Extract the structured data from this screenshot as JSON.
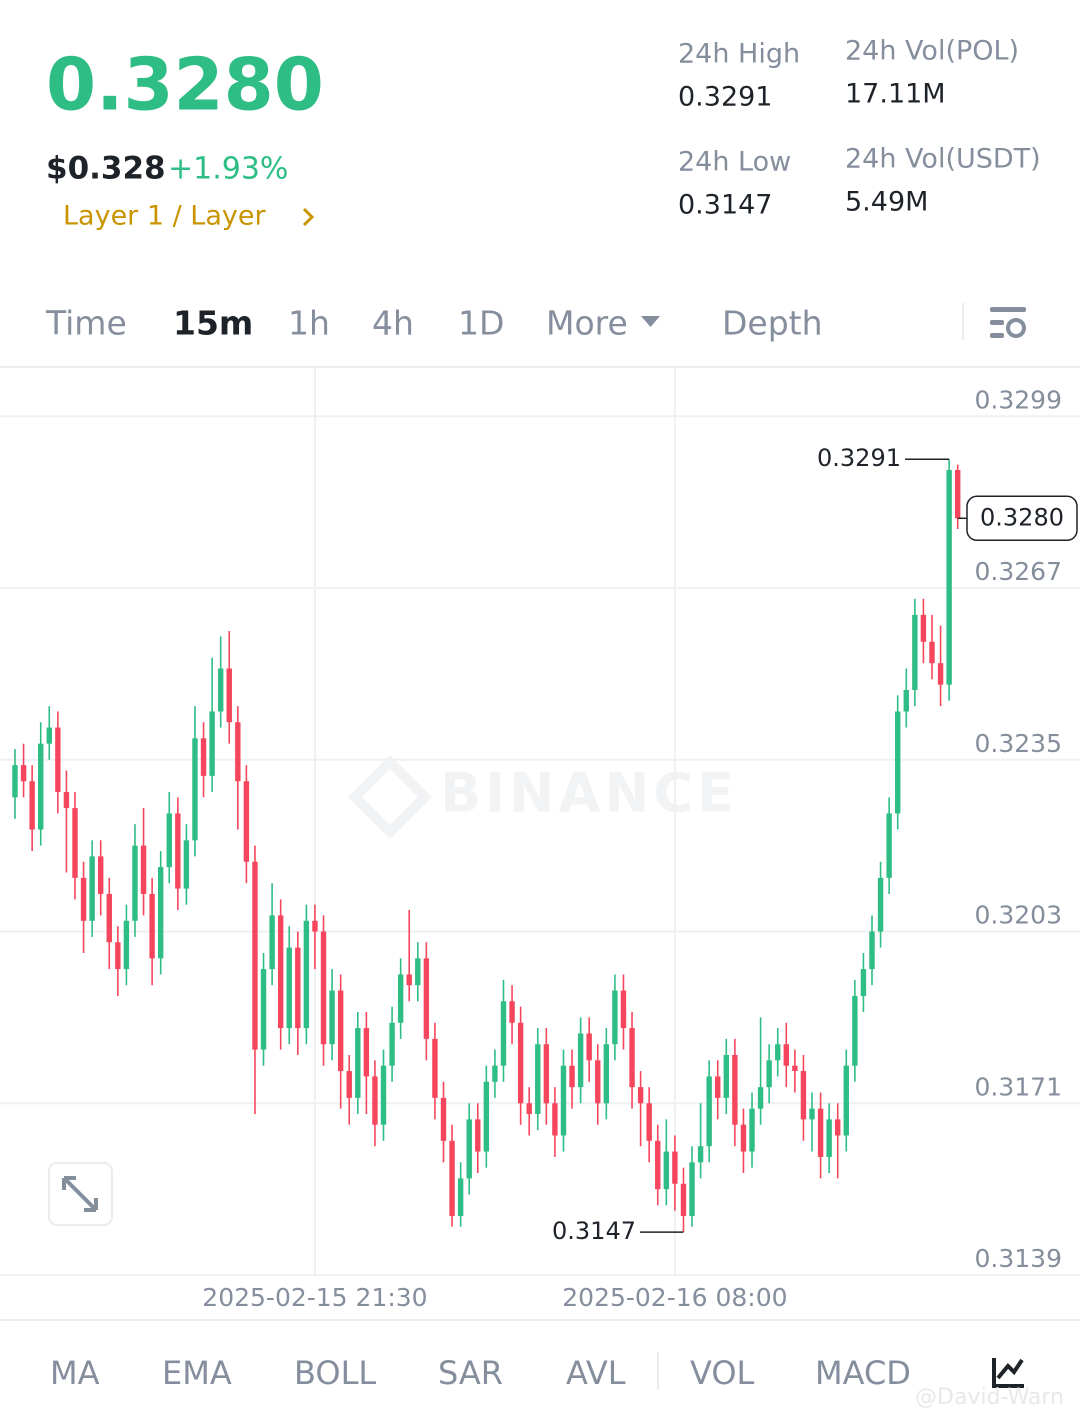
{
  "header": {
    "price": "0.3280",
    "price_usd": "$0.328",
    "change": "+1.93%",
    "category": "Layer 1 / Layer",
    "stats": [
      {
        "label": "24h High",
        "value": "0.3291"
      },
      {
        "label": "24h Vol(POL)",
        "value": "17.11M"
      },
      {
        "label": "24h Low",
        "value": "0.3147"
      },
      {
        "label": "24h Vol(USDT)",
        "value": "5.49M"
      }
    ]
  },
  "tabs": [
    "Time",
    "15m",
    "1h",
    "4h",
    "1D",
    "More",
    "Depth"
  ],
  "active_tab": 1,
  "indicators": [
    "MA",
    "EMA",
    "BOLL",
    "SAR",
    "AVL",
    "VOL",
    "MACD"
  ],
  "watermarks": [
    "BINANCE",
    "@David-Warn"
  ],
  "chart_data": {
    "type": "candlestick",
    "up_color": "#2ebd85",
    "down_color": "#f6465d",
    "grid": true,
    "ylim": [
      0.3139,
      0.3308
    ],
    "yticks": [
      0.3139,
      0.3171,
      0.3203,
      0.3235,
      0.3267,
      0.3299
    ],
    "annotations": [
      {
        "value": 0.3291,
        "label": "0.3291"
      },
      {
        "value": 0.3147,
        "label": "0.3147"
      },
      {
        "value": 0.328,
        "label": "0.3280"
      }
    ],
    "categories": [
      null,
      null,
      null,
      null,
      null,
      null,
      null,
      null,
      null,
      null,
      null,
      null,
      null,
      null,
      null,
      null,
      null,
      null,
      null,
      null,
      null,
      null,
      null,
      null,
      null,
      null,
      null,
      null,
      null,
      null,
      null,
      null,
      null,
      null,
      null,
      "2025-02-15 21:30",
      null,
      null,
      null,
      null,
      null,
      null,
      null,
      null,
      null,
      null,
      null,
      null,
      null,
      null,
      null,
      null,
      null,
      null,
      null,
      null,
      null,
      null,
      null,
      null,
      null,
      null,
      null,
      null,
      null,
      null,
      null,
      null,
      null,
      null,
      null,
      null,
      null,
      null,
      null,
      null,
      null,
      "2025-02-16 08:00",
      null,
      null,
      null,
      null,
      null,
      null,
      null,
      null,
      null,
      null,
      null,
      null,
      null,
      null,
      null,
      null,
      null,
      null,
      null,
      null,
      null,
      null,
      null,
      null,
      null,
      null,
      null,
      null,
      null,
      null,
      null,
      null,
      null
    ],
    "open": [
      0.3228,
      0.3234,
      0.3231,
      0.3222,
      0.3238,
      0.3241,
      0.3229,
      0.3226,
      0.3213,
      0.3205,
      0.3217,
      0.321,
      0.3201,
      0.3196,
      0.3205,
      0.3219,
      0.321,
      0.3198,
      0.3215,
      0.3225,
      0.3211,
      0.322,
      0.3239,
      0.3232,
      0.3244,
      0.3252,
      0.3242,
      0.3231,
      0.3216,
      0.3181,
      0.3196,
      0.3206,
      0.3185,
      0.32,
      0.3185,
      0.3205,
      0.3203,
      0.3182,
      0.3192,
      0.3177,
      0.3172,
      0.3185,
      0.3176,
      0.3167,
      0.3178,
      0.3186,
      0.3195,
      0.3193,
      0.3198,
      0.3183,
      0.3172,
      0.3164,
      0.315,
      0.3157,
      0.3168,
      0.3162,
      0.3175,
      0.3178,
      0.319,
      0.3186,
      0.3171,
      0.3169,
      0.3182,
      0.3171,
      0.3165,
      0.3178,
      0.3174,
      0.3184,
      0.3179,
      0.3171,
      0.3182,
      0.3192,
      0.3185,
      0.3174,
      0.3171,
      0.3164,
      0.3155,
      0.3162,
      0.3156,
      0.315,
      0.316,
      0.3163,
      0.3176,
      0.3172,
      0.318,
      0.3167,
      0.3162,
      0.317,
      0.3174,
      0.3179,
      0.3182,
      0.3178,
      0.3177,
      0.3168,
      0.317,
      0.3161,
      0.3168,
      0.3165,
      0.3178,
      0.3191,
      0.3196,
      0.3203,
      0.3213,
      0.3225,
      0.3244,
      0.3248,
      0.3262,
      0.3257,
      0.3253,
      0.3249,
      0.3289
    ],
    "high": [
      0.3237,
      0.3238,
      0.3234,
      0.3242,
      0.3245,
      0.3244,
      0.3233,
      0.3229,
      0.3216,
      0.322,
      0.322,
      0.3213,
      0.3204,
      0.3208,
      0.3223,
      0.3226,
      0.3213,
      0.3218,
      0.3229,
      0.3228,
      0.3223,
      0.3245,
      0.3242,
      0.3254,
      0.3258,
      0.3259,
      0.3245,
      0.3234,
      0.3219,
      0.3199,
      0.3212,
      0.3209,
      0.3204,
      0.3203,
      0.3208,
      0.3208,
      0.3206,
      0.3196,
      0.3195,
      0.318,
      0.3188,
      0.3188,
      0.3179,
      0.3181,
      0.3189,
      0.3198,
      0.3207,
      0.3201,
      0.3201,
      0.3186,
      0.3175,
      0.3167,
      0.316,
      0.3171,
      0.3171,
      0.3178,
      0.3181,
      0.3194,
      0.3193,
      0.3189,
      0.3174,
      0.3185,
      0.3185,
      0.3174,
      0.3181,
      0.3181,
      0.3187,
      0.3187,
      0.3182,
      0.3185,
      0.3195,
      0.3195,
      0.3188,
      0.3177,
      0.3174,
      0.3167,
      0.3168,
      0.3165,
      0.3159,
      0.3163,
      0.3171,
      0.3179,
      0.3179,
      0.3183,
      0.3183,
      0.317,
      0.3173,
      0.3187,
      0.3182,
      0.3185,
      0.3186,
      0.3181,
      0.318,
      0.3173,
      0.3173,
      0.3171,
      0.3171,
      0.3181,
      0.3194,
      0.3199,
      0.3206,
      0.3216,
      0.3228,
      0.3247,
      0.3252,
      0.3265,
      0.3265,
      0.3262,
      0.326,
      0.3291,
      0.329
    ],
    "low": [
      0.3224,
      0.3228,
      0.3218,
      0.3219,
      0.3235,
      0.3225,
      0.3214,
      0.3209,
      0.3199,
      0.3202,
      0.3206,
      0.3196,
      0.3191,
      0.3193,
      0.3202,
      0.3206,
      0.3193,
      0.3195,
      0.3212,
      0.3207,
      0.3208,
      0.3217,
      0.3228,
      0.3229,
      0.3241,
      0.3238,
      0.3222,
      0.3212,
      0.3169,
      0.3178,
      0.3193,
      0.3181,
      0.3182,
      0.318,
      0.3182,
      0.3196,
      0.3178,
      0.3179,
      0.317,
      0.3167,
      0.3169,
      0.3169,
      0.3163,
      0.3164,
      0.3175,
      0.3183,
      0.319,
      0.319,
      0.3179,
      0.3168,
      0.316,
      0.3148,
      0.3148,
      0.3154,
      0.3158,
      0.3159,
      0.3172,
      0.3175,
      0.3182,
      0.3167,
      0.3165,
      0.3166,
      0.3167,
      0.3161,
      0.3162,
      0.317,
      0.3171,
      0.3175,
      0.3167,
      0.3168,
      0.3179,
      0.3181,
      0.317,
      0.3163,
      0.316,
      0.3152,
      0.3152,
      0.3151,
      0.3147,
      0.3148,
      0.3157,
      0.316,
      0.3168,
      0.3169,
      0.3163,
      0.3158,
      0.3159,
      0.3167,
      0.3171,
      0.3176,
      0.3174,
      0.3173,
      0.3164,
      0.3162,
      0.3157,
      0.3158,
      0.3157,
      0.3162,
      0.3175,
      0.3188,
      0.3193,
      0.32,
      0.321,
      0.3222,
      0.3241,
      0.3245,
      0.3253,
      0.325,
      0.3245,
      0.3246,
      0.3278
    ],
    "close": [
      0.3234,
      0.3231,
      0.3222,
      0.3238,
      0.3241,
      0.3229,
      0.3226,
      0.3213,
      0.3205,
      0.3217,
      0.321,
      0.3201,
      0.3196,
      0.3205,
      0.3219,
      0.321,
      0.3198,
      0.3215,
      0.3225,
      0.3211,
      0.322,
      0.3239,
      0.3232,
      0.3244,
      0.3252,
      0.3242,
      0.3231,
      0.3216,
      0.3181,
      0.3196,
      0.3206,
      0.3185,
      0.32,
      0.3185,
      0.3205,
      0.3203,
      0.3182,
      0.3192,
      0.3177,
      0.3172,
      0.3185,
      0.3176,
      0.3167,
      0.3178,
      0.3186,
      0.3195,
      0.3193,
      0.3198,
      0.3183,
      0.3172,
      0.3164,
      0.315,
      0.3157,
      0.3168,
      0.3162,
      0.3175,
      0.3178,
      0.319,
      0.3186,
      0.3171,
      0.3169,
      0.3182,
      0.3171,
      0.3165,
      0.3178,
      0.3174,
      0.3184,
      0.3179,
      0.3171,
      0.3182,
      0.3192,
      0.3185,
      0.3174,
      0.3171,
      0.3164,
      0.3155,
      0.3162,
      0.3156,
      0.315,
      0.316,
      0.3163,
      0.3176,
      0.3172,
      0.318,
      0.3167,
      0.3162,
      0.317,
      0.3174,
      0.3179,
      0.3182,
      0.3178,
      0.3177,
      0.3168,
      0.317,
      0.3161,
      0.3168,
      0.3165,
      0.3178,
      0.3191,
      0.3196,
      0.3203,
      0.3213,
      0.3225,
      0.3244,
      0.3248,
      0.3262,
      0.3257,
      0.3253,
      0.3249,
      0.3289,
      0.328
    ]
  }
}
